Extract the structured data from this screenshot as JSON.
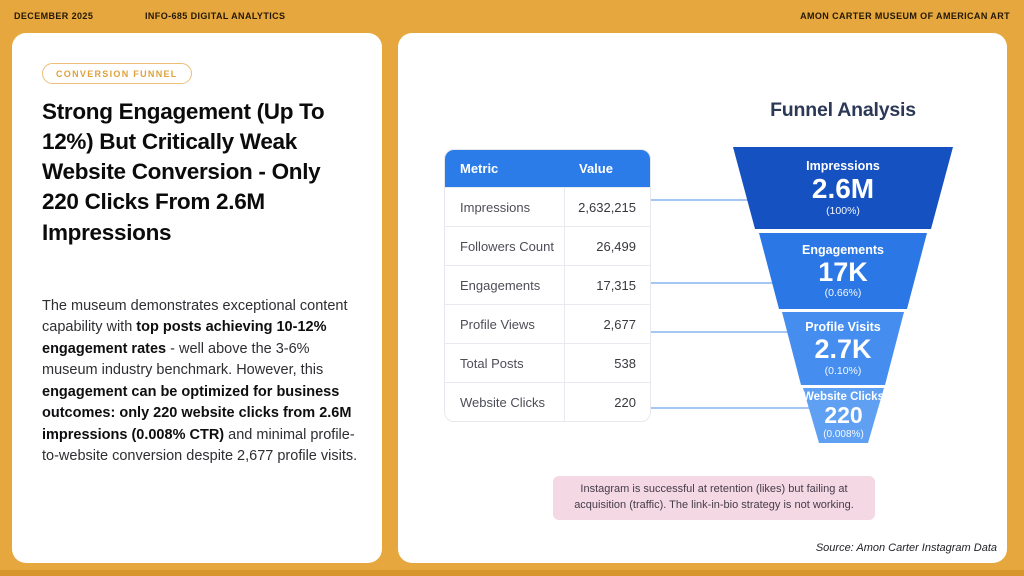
{
  "header": {
    "date": "DECEMBER 2025",
    "course": "INFO-685 DIGITAL ANALYTICS",
    "organization": "AMON CARTER MUSEUM OF AMERICAN ART"
  },
  "left_card": {
    "badge": "CONVERSION FUNNEL",
    "title": "Strong Engagement (Up To 12%) But Critically Weak Website Conversion - Only 220 Clicks From 2.6M Impressions",
    "body_segments": [
      {
        "text": "The museum demonstrates exceptional content capability with ",
        "bold": false
      },
      {
        "text": "top posts achieving 10-12% engagement rates",
        "bold": true
      },
      {
        "text": " - well above the 3-6% museum industry benchmark. However, this ",
        "bold": false
      },
      {
        "text": "engagement can be optimized for business outcomes: only 220 website clicks from 2.6M impressions (0.008% CTR)",
        "bold": true
      },
      {
        "text": " and minimal profile-to-website conversion despite 2,677 profile visits.",
        "bold": false
      }
    ]
  },
  "right_card": {
    "table": {
      "header_metric": "Metric",
      "header_value": "Value",
      "rows": [
        {
          "metric": "Impressions",
          "value": "2,632,215"
        },
        {
          "metric": "Followers Count",
          "value": "26,499"
        },
        {
          "metric": "Engagements",
          "value": "17,315"
        },
        {
          "metric": "Profile Views",
          "value": "2,677"
        },
        {
          "metric": "Total Posts",
          "value": "538"
        },
        {
          "metric": "Website Clicks",
          "value": "220"
        }
      ]
    },
    "funnel": {
      "title": "Funnel Analysis",
      "stages": [
        {
          "label": "Impressions",
          "value": "2.6M",
          "pct": "(100%)",
          "color": "#1551C1"
        },
        {
          "label": "Engagements",
          "value": "17K",
          "pct": "(0.66%)",
          "color": "#2C77E6"
        },
        {
          "label": "Profile Visits",
          "value": "2.7K",
          "pct": "(0.10%)",
          "color": "#458DEF"
        },
        {
          "label": "Website Clicks",
          "value": "220",
          "pct": "(0.008%)",
          "color": "#60A0F3"
        }
      ]
    },
    "note": "Instagram is successful at retention (likes) but failing at acquisition (traffic). The link-in-bio strategy is not working.",
    "source": "Source: Amon Carter Instagram Data"
  },
  "colors": {
    "background": "#E5A73E",
    "background_strip": "#D7952C",
    "accent_orange": "#DFA23C",
    "table_header_blue": "#2B7BE8",
    "funnel_title_navy": "#2C3956",
    "connector_blue": "#A5C7F3",
    "note_pink": "#F4D9E4"
  },
  "chart_data": {
    "type": "funnel",
    "title": "Funnel Analysis",
    "categories": [
      "Impressions",
      "Engagements",
      "Profile Visits",
      "Website Clicks"
    ],
    "values": [
      2632215,
      17315,
      2677,
      220
    ],
    "value_labels": [
      "2.6M",
      "17K",
      "2.7K",
      "220"
    ],
    "percent_labels": [
      "(100%)",
      "(0.66%)",
      "(0.10%)",
      "(0.008%)"
    ],
    "legend_position": "none",
    "supporting_table": {
      "type": "table",
      "columns": [
        "Metric",
        "Value"
      ],
      "rows": [
        [
          "Impressions",
          2632215
        ],
        [
          "Followers Count",
          26499
        ],
        [
          "Engagements",
          17315
        ],
        [
          "Profile Views",
          2677
        ],
        [
          "Total Posts",
          538
        ],
        [
          "Website Clicks",
          220
        ]
      ]
    }
  }
}
